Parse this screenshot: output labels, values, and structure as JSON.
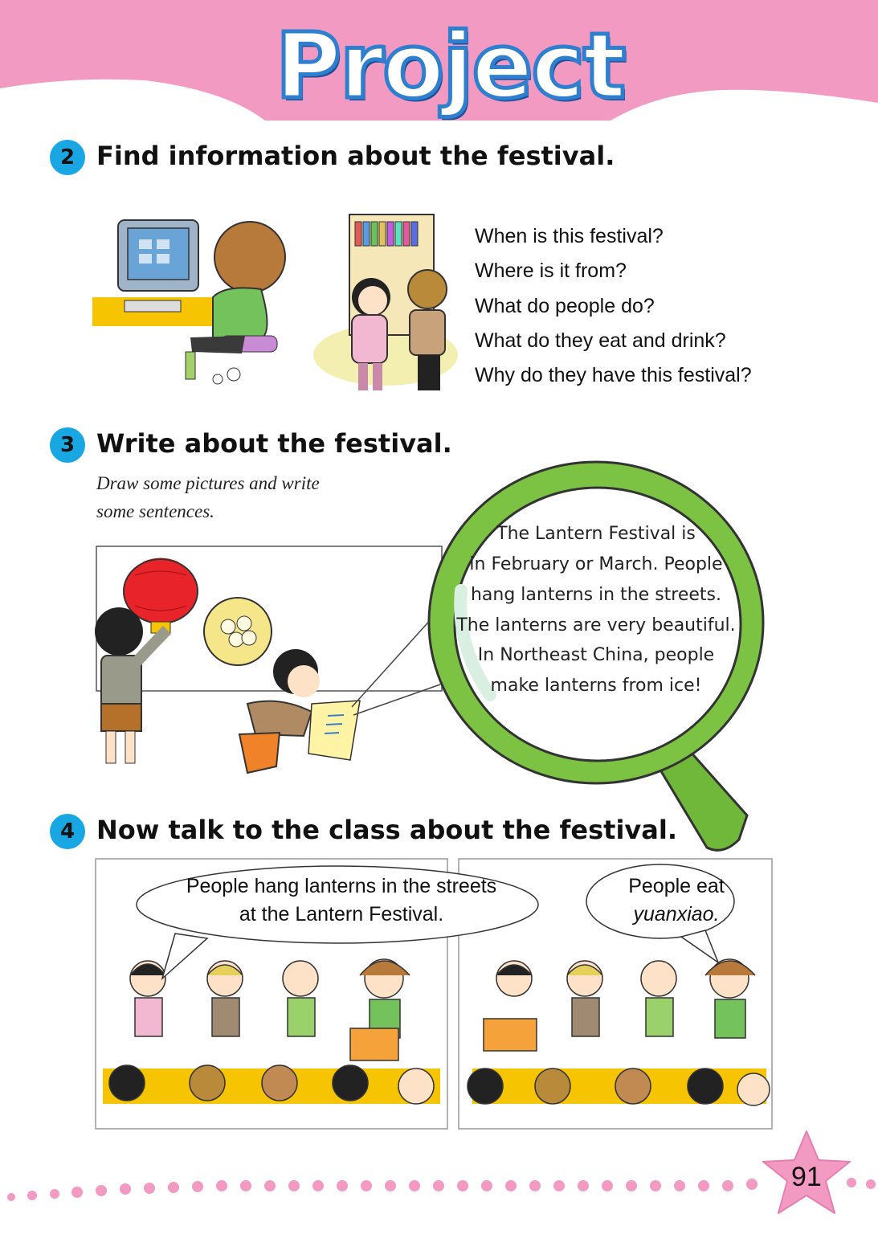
{
  "header": {
    "title": "Project"
  },
  "section2": {
    "number": "2",
    "heading": "Find information about the festival.",
    "questions": [
      "When is this festival?",
      "Where is it from?",
      "What do people do?",
      "What do they eat and drink?",
      "Why do they have this festival?"
    ]
  },
  "section3": {
    "number": "3",
    "heading": "Write about the festival.",
    "instruction_line1": "Draw some pictures and write",
    "instruction_line2": "some sentences.",
    "magnifier_lines": [
      "The Lantern Festival is",
      "in February or March. People",
      "hang lanterns in the streets.",
      "The lanterns are very beautiful.",
      "In Northeast China, people",
      "make lanterns from ice!"
    ]
  },
  "section4": {
    "number": "4",
    "heading": "Now talk to the class about the festival.",
    "bubble_left_line1": "People hang lanterns in the streets",
    "bubble_left_line2": "at the Lantern Festival.",
    "bubble_right_line1": "People eat",
    "bubble_right_line2": "yuanxiao."
  },
  "footer": {
    "page_number": "91"
  },
  "colors": {
    "banner_pink": "#f39ac3",
    "badge_blue": "#18a7e3",
    "magnifier_green": "#7cc243",
    "desk_yellow": "#f6c400"
  }
}
